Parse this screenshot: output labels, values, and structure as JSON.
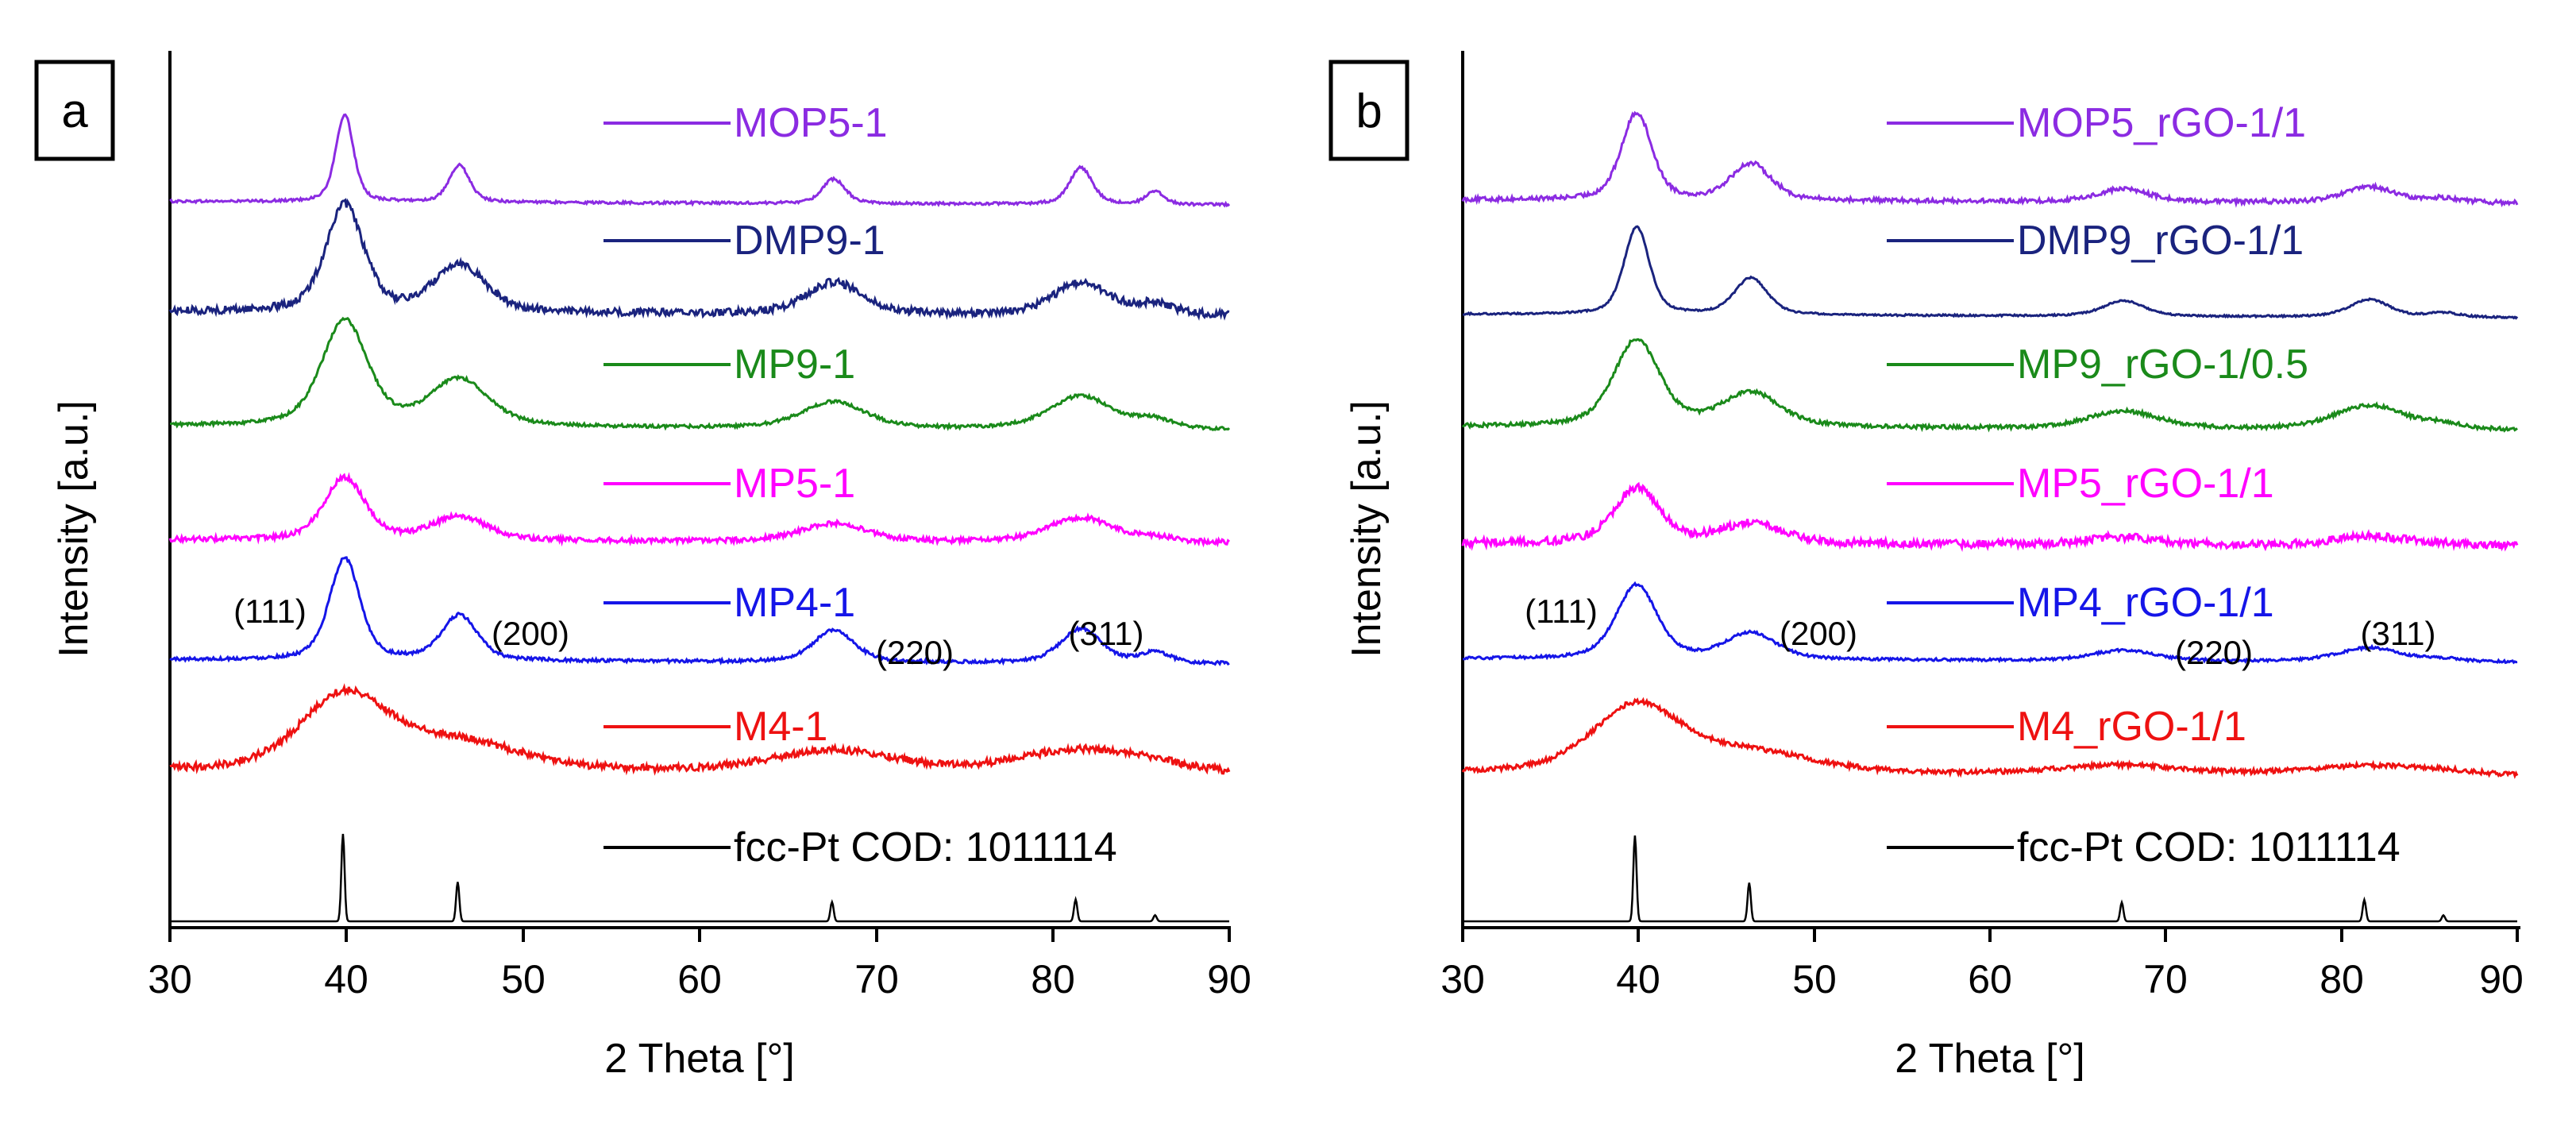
{
  "chart_data": [
    {
      "type": "line",
      "panel_label": "a",
      "xlabel": "2 Theta [°]",
      "ylabel": "Intensity [a.u.]",
      "xlim": [
        30,
        90
      ],
      "xticks": [
        "30",
        "40",
        "50",
        "60",
        "70",
        "80",
        "90"
      ],
      "y_ticks_shown": false,
      "series": [
        {
          "name": "MOP5-1",
          "color": "#8B2BE2",
          "peak_widths": [
            0.7,
            0.8,
            0.9,
            0.9,
            0.7
          ],
          "peak_heights": [
            1.0,
            0.42,
            0.28,
            0.42,
            0.15
          ],
          "noise": 0.03
        },
        {
          "name": "DMP9-1",
          "color": "#1A237E",
          "peak_widths": [
            1.5,
            2.0,
            2.2,
            2.2,
            1.5
          ],
          "peak_heights": [
            1.0,
            0.45,
            0.3,
            0.3,
            0.1
          ],
          "noise": 0.07
        },
        {
          "name": "MP9-1",
          "color": "#1A8A1A",
          "peak_widths": [
            1.8,
            2.3,
            2.5,
            2.5,
            1.5
          ],
          "peak_heights": [
            0.95,
            0.42,
            0.24,
            0.3,
            0.08
          ],
          "noise": 0.03
        },
        {
          "name": "MP5-1",
          "color": "#FF00FF",
          "peak_widths": [
            1.6,
            2.2,
            2.6,
            2.6,
            1.5
          ],
          "peak_heights": [
            0.75,
            0.28,
            0.22,
            0.3,
            0.05
          ],
          "noise": 0.06
        },
        {
          "name": "MP4-1",
          "color": "#1515E8",
          "peak_widths": [
            1.2,
            1.4,
            1.6,
            1.6,
            1.2
          ],
          "peak_heights": [
            0.95,
            0.42,
            0.3,
            0.32,
            0.1
          ],
          "noise": 0.03
        },
        {
          "name": "M4-1",
          "color": "#EE1111",
          "peak_widths": [
            3.5,
            5.0,
            5.0,
            5.0,
            3.0
          ],
          "peak_heights": [
            0.95,
            0.35,
            0.28,
            0.3,
            0.05
          ],
          "noise": 0.09
        },
        {
          "name": "fcc-Pt COD: 1011114",
          "color": "#000000",
          "type": "reference",
          "peaks": [
            {
              "position": 39.8,
              "intensity": 1.0
            },
            {
              "position": 46.3,
              "intensity": 0.45
            },
            {
              "position": 67.5,
              "intensity": 0.22
            },
            {
              "position": 81.3,
              "intensity": 0.25
            },
            {
              "position": 85.8,
              "intensity": 0.07
            }
          ]
        }
      ],
      "peak_positions": [
        39.9,
        46.4,
        67.6,
        81.6,
        85.8
      ],
      "annotations": [
        {
          "text": "(111)",
          "x": 35.6
        },
        {
          "text": "(200)",
          "x": 50.4
        },
        {
          "text": "(220)",
          "x": 72.3
        },
        {
          "text": "(311)",
          "x": 84.6
        }
      ]
    },
    {
      "type": "line",
      "panel_label": "b",
      "xlabel": "2 Theta [°]",
      "ylabel": "Intensity [a.u.]",
      "xlim": [
        30,
        90
      ],
      "xticks": [
        "30",
        "40",
        "50",
        "60",
        "70",
        "80",
        "90"
      ],
      "y_ticks_shown": false,
      "series": [
        {
          "name": "MOP5_rGO-1/1",
          "color": "#8B2BE2",
          "peak_widths": [
            1.2,
            1.6,
            2.0,
            2.0,
            1.5
          ],
          "peak_heights": [
            1.0,
            0.42,
            0.15,
            0.18,
            0.05
          ],
          "noise": 0.05
        },
        {
          "name": "DMP9_rGO-1/1",
          "color": "#1A237E",
          "peak_widths": [
            1.0,
            1.3,
            1.6,
            1.6,
            1.2
          ],
          "peak_heights": [
            1.0,
            0.42,
            0.18,
            0.2,
            0.05
          ],
          "noise": 0.02
        },
        {
          "name": "MP9_rGO-1/0.5",
          "color": "#1A8A1A",
          "peak_widths": [
            1.8,
            2.3,
            2.8,
            2.8,
            1.5
          ],
          "peak_heights": [
            0.9,
            0.35,
            0.18,
            0.25,
            0.05
          ],
          "noise": 0.04
        },
        {
          "name": "MP5_rGO-1/1",
          "color": "#FF00FF",
          "peak_widths": [
            1.8,
            2.5,
            3.0,
            3.0,
            1.5
          ],
          "peak_heights": [
            0.7,
            0.25,
            0.1,
            0.12,
            0.03
          ],
          "noise": 0.1
        },
        {
          "name": "MP4_rGO-1/1",
          "color": "#1515E8",
          "peak_widths": [
            1.6,
            2.0,
            2.5,
            2.5,
            1.5
          ],
          "peak_heights": [
            0.85,
            0.3,
            0.12,
            0.16,
            0.03
          ],
          "noise": 0.03
        },
        {
          "name": "M4_rGO-1/1",
          "color": "#EE1111",
          "peak_widths": [
            3.5,
            5.0,
            5.0,
            5.0,
            3.0
          ],
          "peak_heights": [
            0.85,
            0.25,
            0.12,
            0.12,
            0.03
          ],
          "noise": 0.06
        },
        {
          "name": "fcc-Pt COD: 1011114",
          "color": "#000000",
          "type": "reference",
          "peaks": [
            {
              "position": 39.8,
              "intensity": 1.0
            },
            {
              "position": 46.3,
              "intensity": 0.45
            },
            {
              "position": 67.5,
              "intensity": 0.22
            },
            {
              "position": 81.3,
              "intensity": 0.25
            },
            {
              "position": 85.8,
              "intensity": 0.07
            }
          ]
        }
      ],
      "peak_positions": [
        39.9,
        46.4,
        67.6,
        81.6,
        85.8
      ],
      "annotations": [
        {
          "text": "(111)",
          "x": 35.6
        },
        {
          "text": "(200)",
          "x": 50.2
        },
        {
          "text": "(220)",
          "x": 72.8
        },
        {
          "text": "(311)",
          "x": 84.8
        }
      ]
    }
  ]
}
